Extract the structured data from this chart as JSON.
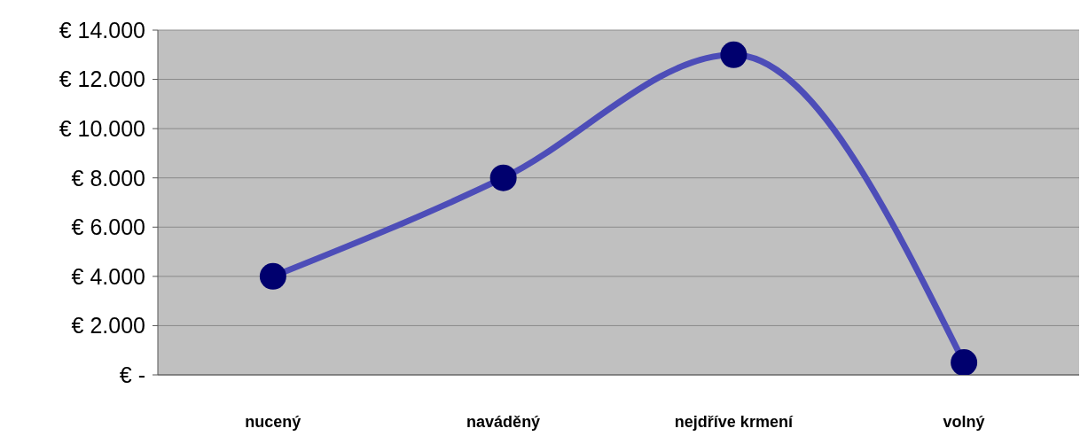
{
  "chart_data": {
    "type": "line",
    "categories": [
      "nucený",
      "naváděný",
      "nejdříve krmení",
      "volný"
    ],
    "series": [
      {
        "color": "#4d4db8",
        "values": [
          4000,
          8000,
          13000,
          500
        ]
      }
    ],
    "ylim": [
      0,
      14000
    ],
    "yticks": [
      {
        "value": 0,
        "label": "€ -"
      },
      {
        "value": 2000,
        "label": "€ 2.000"
      },
      {
        "value": 4000,
        "label": "€ 4.000"
      },
      {
        "value": 6000,
        "label": "€ 6.000"
      },
      {
        "value": 8000,
        "label": "€ 8.000"
      },
      {
        "value": 10000,
        "label": "€ 10.000"
      },
      {
        "value": 12000,
        "label": "€ 12.000"
      },
      {
        "value": 14000,
        "label": "€ 14.000"
      }
    ],
    "grid": "y",
    "marker": "circle",
    "line_style": "solid",
    "legend": false
  }
}
